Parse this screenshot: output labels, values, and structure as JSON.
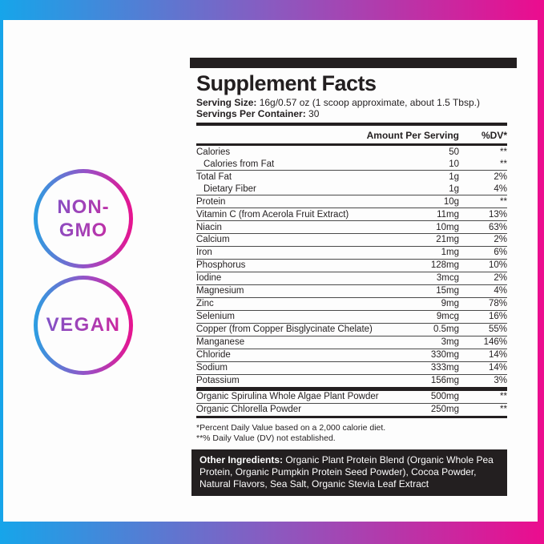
{
  "frame": {
    "gradient_start": "#16a5ea",
    "gradient_end": "#ec0c8e"
  },
  "badges": [
    {
      "id": "non-gmo",
      "lines": [
        "NON-",
        "GMO"
      ]
    },
    {
      "id": "vegan",
      "lines": [
        "VEGAN"
      ]
    }
  ],
  "label": {
    "title": "Supplement Facts",
    "serving_size_label": "Serving Size:",
    "serving_size_value": " 16g/0.57 oz (1 scoop approximate, about 1.5 Tbsp.)",
    "servings_label": "Servings Per Container:",
    "servings_value": " 30",
    "col_amount": "Amount Per Serving",
    "col_dv": "%DV*",
    "rows": [
      {
        "name": "Calories",
        "amount": "50",
        "dv": "**",
        "indent": false
      },
      {
        "name": "Calories from Fat",
        "amount": "10",
        "dv": "**",
        "indent": true
      },
      {
        "name": "Total Fat",
        "amount": "1g",
        "dv": "2%",
        "indent": false
      },
      {
        "name": "Dietary Fiber",
        "amount": "1g",
        "dv": "4%",
        "indent": true
      },
      {
        "name": "Protein",
        "amount": "10g",
        "dv": "**",
        "indent": false
      },
      {
        "name": "Vitamin C (from Acerola Fruit Extract)",
        "amount": "11mg",
        "dv": "13%",
        "indent": false
      },
      {
        "name": "Niacin",
        "amount": "10mg",
        "dv": "63%",
        "indent": false
      },
      {
        "name": "Calcium",
        "amount": "21mg",
        "dv": "2%",
        "indent": false
      },
      {
        "name": "Iron",
        "amount": "1mg",
        "dv": "6%",
        "indent": false
      },
      {
        "name": "Phosphorus",
        "amount": "128mg",
        "dv": "10%",
        "indent": false
      },
      {
        "name": "Iodine",
        "amount": "3mcg",
        "dv": "2%",
        "indent": false
      },
      {
        "name": "Magnesium",
        "amount": "15mg",
        "dv": "4%",
        "indent": false
      },
      {
        "name": "Zinc",
        "amount": "9mg",
        "dv": "78%",
        "indent": false
      },
      {
        "name": "Selenium",
        "amount": "9mcg",
        "dv": "16%",
        "indent": false
      },
      {
        "name": "Copper (from Copper Bisglycinate Chelate)",
        "amount": "0.5mg",
        "dv": "55%",
        "indent": false
      },
      {
        "name": "Manganese",
        "amount": "3mg",
        "dv": "146%",
        "indent": false
      },
      {
        "name": "Chloride",
        "amount": "330mg",
        "dv": "14%",
        "indent": false
      },
      {
        "name": "Sodium",
        "amount": "333mg",
        "dv": "14%",
        "indent": false
      },
      {
        "name": "Potassium",
        "amount": "156mg",
        "dv": "3%",
        "indent": false
      }
    ],
    "blend_rows": [
      {
        "name": "Organic Spirulina Whole Algae Plant Powder",
        "amount": "500mg",
        "dv": "**",
        "indent": false
      },
      {
        "name": "Organic Chlorella Powder",
        "amount": "250mg",
        "dv": "**",
        "indent": false
      }
    ],
    "footnotes": [
      "*Percent Daily Value based on a 2,000 calorie diet.",
      "**% Daily Value (DV) not established."
    ],
    "other_ingredients_label": "Other Ingredients:",
    "other_ingredients_text": " Organic Plant Protein Blend (Organic Whole Pea Protein, Organic Pumpkin Protein Seed Powder), Cocoa Powder, Natural Flavors, Sea Salt, Organic Stevia Leaf Extract"
  }
}
